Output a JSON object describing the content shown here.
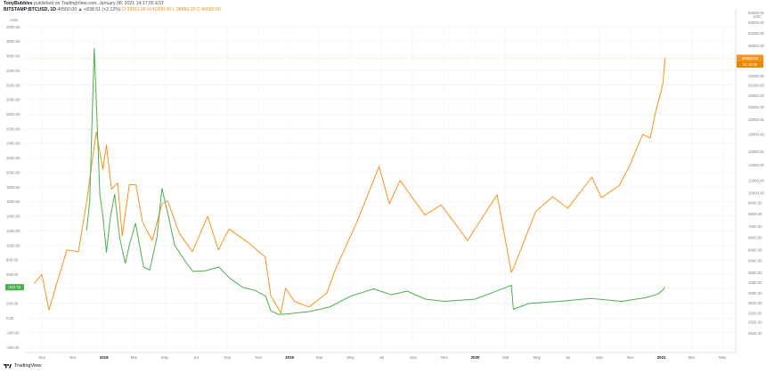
{
  "header": {
    "author": "TonyBubbles",
    "published": "published on TradingView.com, January 08, 2021 14:17:05 EST",
    "symbol": "BITSTAMP:BTCUSD, 1D",
    "change": "40550.00 ▲ +838.51 (+2.12%)",
    "ohlc": "O:39511.00 H:41000.00 L:38650.20 C:40550.00"
  },
  "footer": {
    "brand": "TradingView",
    "logo_icon": "tradingview-logo-icon"
  },
  "colors": {
    "btc": "#f7931a",
    "other": "#4caf50",
    "grid": "#eef0f3",
    "axis_text": "#7a7f8a"
  },
  "chart_data": {
    "type": "line",
    "x_ticks": [
      "Sep",
      "Nov",
      "2018",
      "Mar",
      "May",
      "Jul",
      "Sep",
      "Nov",
      "2019",
      "Mar",
      "May",
      "Jul",
      "Sep",
      "Nov",
      "2020",
      "Mar",
      "May",
      "Jul",
      "Sep",
      "Nov",
      "2021",
      "Mar",
      "May"
    ],
    "left_axis": {
      "unit": "USD",
      "ticks": [
        "4000.00",
        "3800.00",
        "3600.00",
        "3400.00",
        "3200.00",
        "3000.00",
        "2800.00",
        "2600.00",
        "2400.00",
        "2200.00",
        "2000.00",
        "1800.00",
        "1600.00",
        "1400.00",
        "1200.00",
        "1000.00",
        "800.00",
        "600.00",
        "400.00",
        "200.00",
        "0.00",
        "-200.00",
        "-400.00"
      ],
      "ylim": [
        -400,
        4000
      ],
      "last_label": "423.76"
    },
    "right_axis": {
      "unit": "USD",
      "scale": "log",
      "ticks": [
        "64000.00",
        "58000.00",
        "52000.00",
        "46000.00",
        "40000.00",
        "34000.00",
        "31000.00",
        "28000.00",
        "25000.00",
        "22000.00",
        "19000.00",
        "16000.00",
        "14000.00",
        "12000.00",
        "10600.00",
        "9600.00",
        "8600.00",
        "7600.00",
        "6800.00",
        "6000.00",
        "5400.00",
        "4800.00",
        "4350.00",
        "3900.00",
        "3540.00",
        "3200.00",
        "2925.00",
        "2625.00"
      ],
      "last_labels": [
        "40550.00",
        "04:43:00"
      ]
    },
    "series": [
      {
        "color": "#f7931a",
        "axis": "right",
        "points": [
          [
            "2017-08-17",
            4300
          ],
          [
            "2017-09-01",
            4700
          ],
          [
            "2017-09-15",
            3300
          ],
          [
            "2017-10-01",
            4350
          ],
          [
            "2017-10-20",
            6000
          ],
          [
            "2017-11-12",
            5900
          ],
          [
            "2017-11-29",
            10000
          ],
          [
            "2017-12-17",
            19500
          ],
          [
            "2017-12-30",
            13400
          ],
          [
            "2018-01-06",
            17100
          ],
          [
            "2018-01-16",
            11000
          ],
          [
            "2018-01-28",
            11700
          ],
          [
            "2018-02-06",
            6900
          ],
          [
            "2018-02-20",
            11500
          ],
          [
            "2018-03-05",
            11500
          ],
          [
            "2018-03-18",
            7900
          ],
          [
            "2018-04-06",
            6600
          ],
          [
            "2018-04-25",
            9500
          ],
          [
            "2018-05-06",
            9800
          ],
          [
            "2018-05-29",
            7100
          ],
          [
            "2018-06-24",
            5900
          ],
          [
            "2018-07-24",
            8400
          ],
          [
            "2018-08-14",
            6000
          ],
          [
            "2018-09-04",
            7400
          ],
          [
            "2018-10-10",
            6500
          ],
          [
            "2018-11-14",
            5600
          ],
          [
            "2018-11-25",
            3800
          ],
          [
            "2018-12-15",
            3200
          ],
          [
            "2018-12-24",
            4100
          ],
          [
            "2019-01-10",
            3600
          ],
          [
            "2019-02-08",
            3400
          ],
          [
            "2019-03-15",
            3900
          ],
          [
            "2019-04-02",
            5000
          ],
          [
            "2019-05-14",
            8000
          ],
          [
            "2019-06-26",
            13800
          ],
          [
            "2019-07-16",
            9500
          ],
          [
            "2019-08-06",
            12000
          ],
          [
            "2019-09-24",
            8500
          ],
          [
            "2019-10-26",
            9400
          ],
          [
            "2019-12-17",
            6600
          ],
          [
            "2020-02-13",
            10400
          ],
          [
            "2020-03-12",
            4800
          ],
          [
            "2020-03-16",
            5000
          ],
          [
            "2020-04-29",
            8800
          ],
          [
            "2020-06-01",
            10200
          ],
          [
            "2020-07-01",
            9100
          ],
          [
            "2020-08-17",
            12400
          ],
          [
            "2020-09-05",
            10100
          ],
          [
            "2020-10-10",
            11400
          ],
          [
            "2020-10-30",
            13800
          ],
          [
            "2020-11-25",
            19000
          ],
          [
            "2020-12-10",
            18300
          ],
          [
            "2020-12-20",
            23500
          ],
          [
            "2020-12-31",
            29000
          ],
          [
            "2021-01-04",
            31500
          ],
          [
            "2021-01-08",
            40550
          ]
        ]
      },
      {
        "color": "#4caf50",
        "axis": "left",
        "points": [
          [
            "2017-11-28",
            1200
          ],
          [
            "2017-12-04",
            1600
          ],
          [
            "2017-12-10",
            3000
          ],
          [
            "2017-12-13",
            3700
          ],
          [
            "2017-12-18",
            2800
          ],
          [
            "2017-12-24",
            1700
          ],
          [
            "2017-12-30",
            1400
          ],
          [
            "2018-01-06",
            900
          ],
          [
            "2018-01-14",
            1400
          ],
          [
            "2018-01-22",
            1700
          ],
          [
            "2018-02-01",
            1100
          ],
          [
            "2018-02-12",
            750
          ],
          [
            "2018-02-20",
            1000
          ],
          [
            "2018-03-04",
            1300
          ],
          [
            "2018-03-20",
            700
          ],
          [
            "2018-04-01",
            660
          ],
          [
            "2018-04-15",
            1100
          ],
          [
            "2018-04-25",
            1780
          ],
          [
            "2018-05-06",
            1450
          ],
          [
            "2018-05-20",
            1000
          ],
          [
            "2018-06-10",
            780
          ],
          [
            "2018-06-25",
            640
          ],
          [
            "2018-07-20",
            650
          ],
          [
            "2018-08-15",
            700
          ],
          [
            "2018-09-05",
            550
          ],
          [
            "2018-10-01",
            420
          ],
          [
            "2018-10-25",
            380
          ],
          [
            "2018-11-15",
            300
          ],
          [
            "2018-11-25",
            100
          ],
          [
            "2018-12-10",
            50
          ],
          [
            "2019-01-01",
            60
          ],
          [
            "2019-02-10",
            90
          ],
          [
            "2019-03-20",
            150
          ],
          [
            "2019-05-01",
            300
          ],
          [
            "2019-06-15",
            400
          ],
          [
            "2019-07-20",
            320
          ],
          [
            "2019-08-20",
            370
          ],
          [
            "2019-09-25",
            260
          ],
          [
            "2019-11-01",
            230
          ],
          [
            "2020-01-01",
            260
          ],
          [
            "2020-02-15",
            380
          ],
          [
            "2020-03-12",
            450
          ],
          [
            "2020-03-16",
            120
          ],
          [
            "2020-04-15",
            200
          ],
          [
            "2020-06-15",
            230
          ],
          [
            "2020-08-15",
            270
          ],
          [
            "2020-10-15",
            230
          ],
          [
            "2020-12-01",
            280
          ],
          [
            "2020-12-25",
            330
          ],
          [
            "2021-01-03",
            380
          ],
          [
            "2021-01-08",
            423.76
          ]
        ]
      }
    ]
  }
}
